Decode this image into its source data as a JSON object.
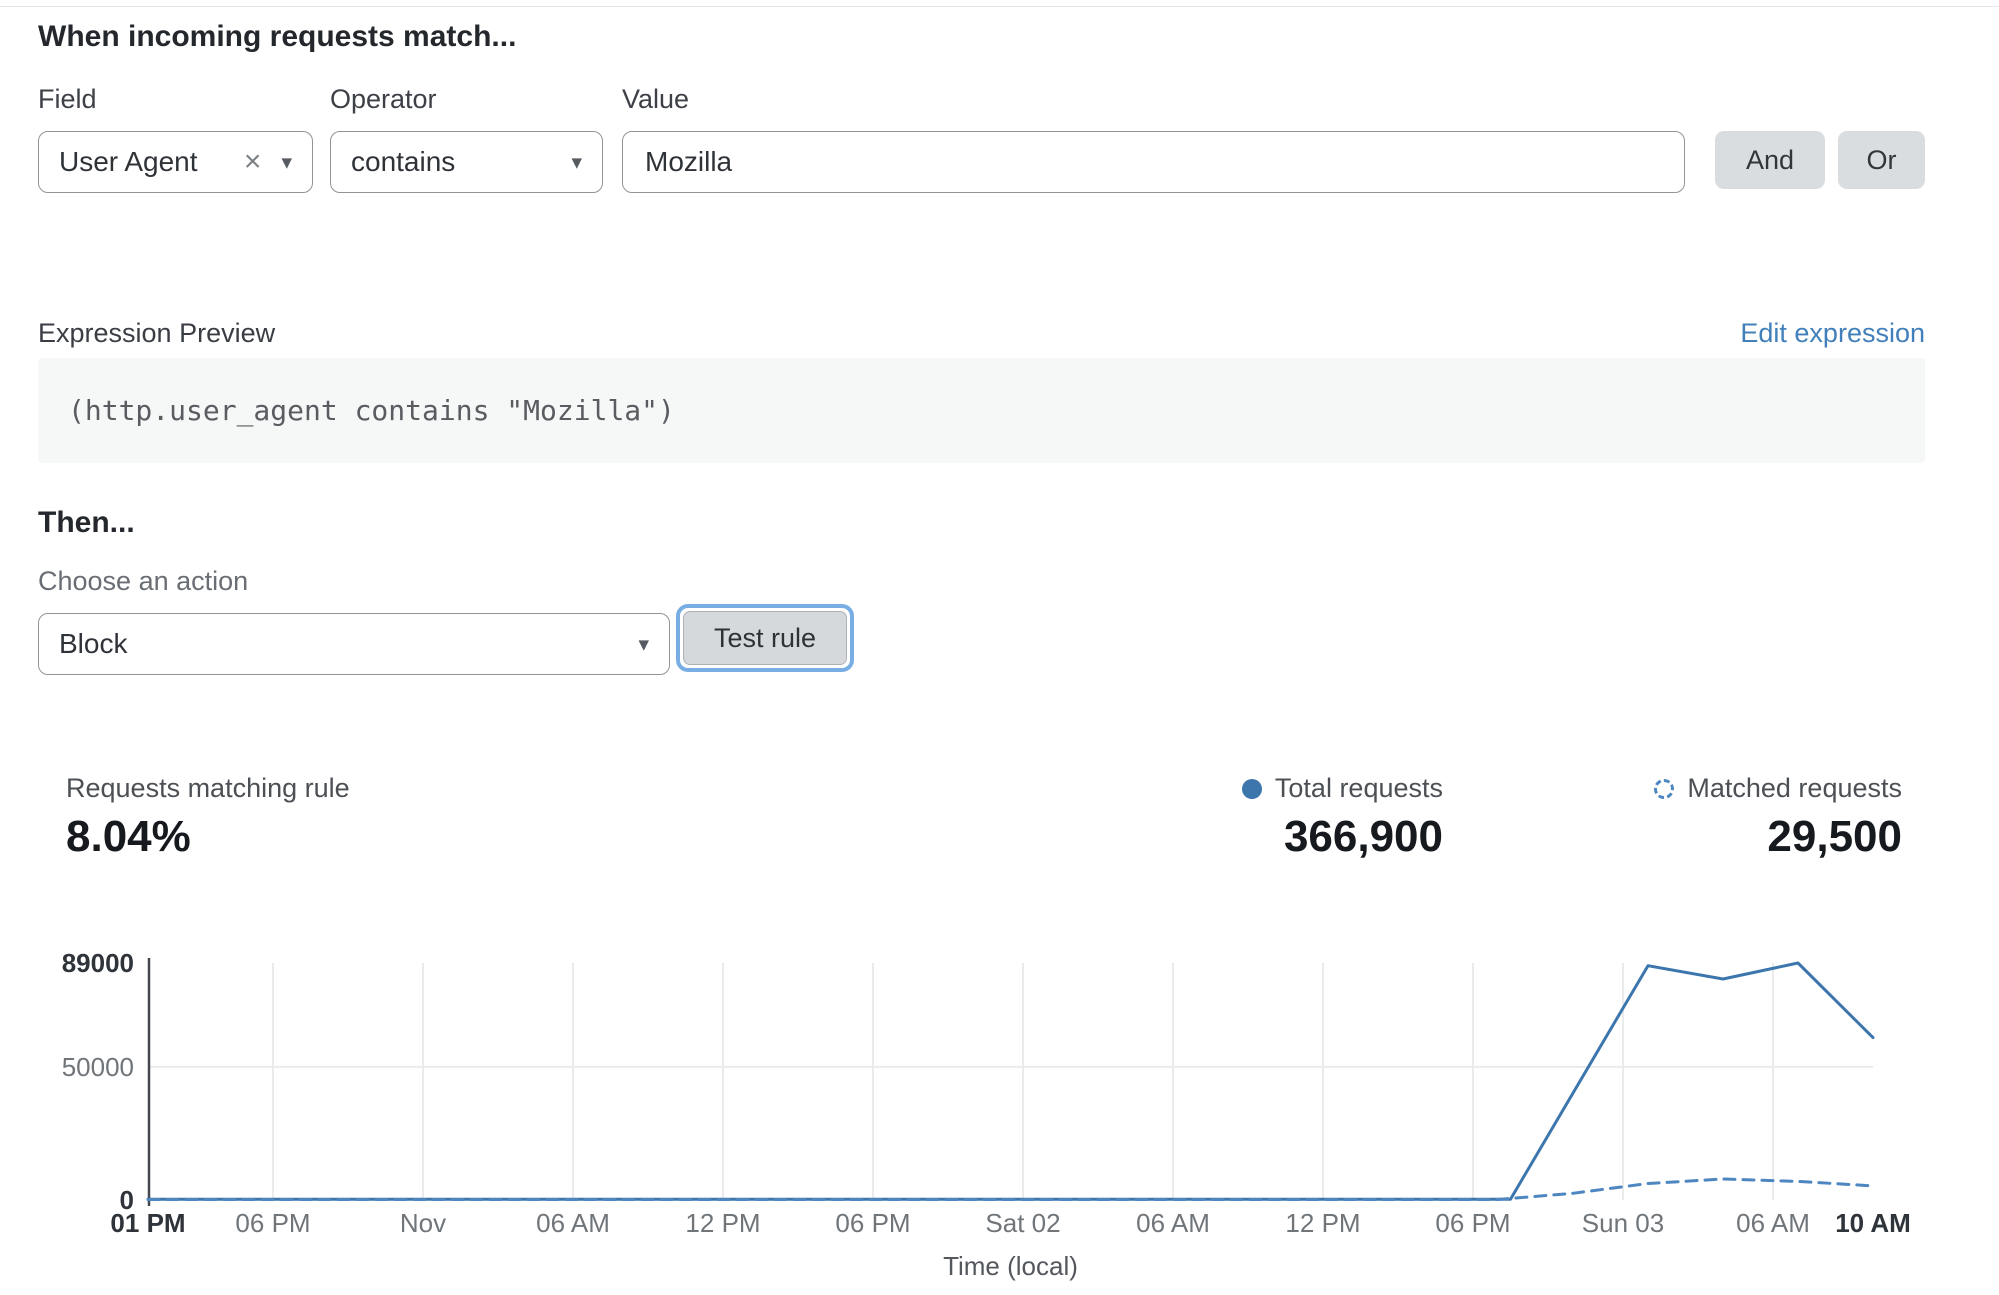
{
  "header": {
    "title": "When incoming requests match..."
  },
  "icons": {
    "caret": "▾",
    "clear": "×"
  },
  "rule_builder": {
    "field": {
      "label": "Field",
      "value": "User Agent"
    },
    "operator": {
      "label": "Operator",
      "value": "contains"
    },
    "value": {
      "label": "Value",
      "value": "Mozilla"
    },
    "and_label": "And",
    "or_label": "Or"
  },
  "expression": {
    "label": "Expression Preview",
    "edit_link": "Edit expression",
    "code": "(http.user_agent contains \"Mozilla\")"
  },
  "action": {
    "heading": "Then...",
    "choose_label": "Choose an action",
    "selected": "Block",
    "test_button": "Test rule"
  },
  "stats": {
    "match_label": "Requests matching rule",
    "match_value": "8.04%",
    "total_label": "Total requests",
    "total_value": "366,900",
    "matched_label": "Matched requests",
    "matched_value": "29,500"
  },
  "colors": {
    "accent_blue": "#3c76ad",
    "link_blue": "#4180ba",
    "focus_ring": "#79aee4",
    "button_gray": "#dadde0"
  },
  "chart_data": {
    "type": "line",
    "title": "",
    "xlabel": "Time (local)",
    "ylabel": "",
    "ylim": [
      0,
      89000
    ],
    "grid": true,
    "legend": [
      "Total requests",
      "Matched requests"
    ],
    "legend_position": "top-right",
    "x_ticks": [
      {
        "label": "01 PM",
        "h": 0,
        "bold": true
      },
      {
        "label": "06 PM",
        "h": 5
      },
      {
        "label": "Nov",
        "h": 11
      },
      {
        "label": "06 AM",
        "h": 17
      },
      {
        "label": "12 PM",
        "h": 23
      },
      {
        "label": "06 PM",
        "h": 29
      },
      {
        "label": "Sat 02",
        "h": 35
      },
      {
        "label": "06 AM",
        "h": 41
      },
      {
        "label": "12 PM",
        "h": 47
      },
      {
        "label": "06 PM",
        "h": 53
      },
      {
        "label": "Sun 03",
        "h": 59
      },
      {
        "label": "06 AM",
        "h": 65
      },
      {
        "label": "10 AM",
        "h": 69,
        "bold": true
      }
    ],
    "y_ticks": [
      {
        "label": "89000",
        "v": 89000,
        "bold": true
      },
      {
        "label": "50000",
        "v": 50000
      },
      {
        "label": "0",
        "v": 0,
        "bold": true
      }
    ],
    "series": [
      {
        "name": "Total requests",
        "style": "solid",
        "color": "#3c76ad",
        "points": [
          [
            0,
            300
          ],
          [
            53,
            300
          ],
          [
            54.5,
            300
          ],
          [
            60,
            88000
          ],
          [
            63,
            83000
          ],
          [
            66,
            89000
          ],
          [
            69,
            61000
          ]
        ]
      },
      {
        "name": "Matched requests",
        "style": "dashed",
        "color": "#4e87c0",
        "points": [
          [
            0,
            200
          ],
          [
            54,
            200
          ],
          [
            57,
            2500
          ],
          [
            60,
            6200
          ],
          [
            63,
            7900
          ],
          [
            66,
            7000
          ],
          [
            69,
            5300
          ]
        ]
      }
    ]
  }
}
